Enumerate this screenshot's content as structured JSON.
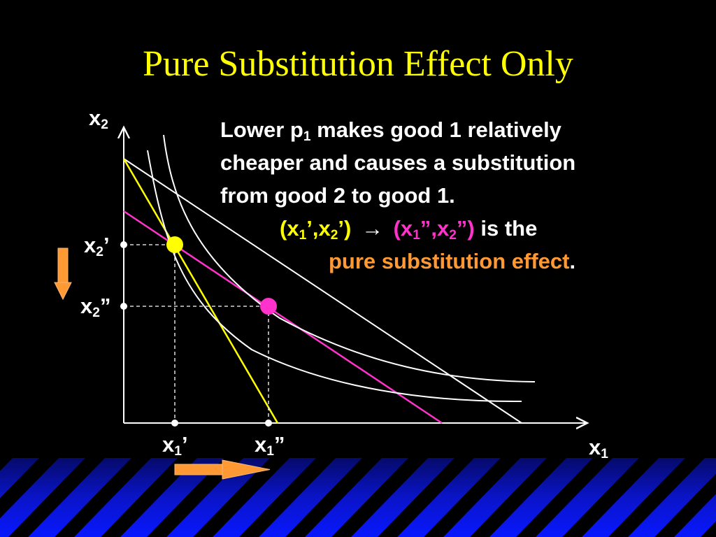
{
  "title": "Pure Substitution Effect Only",
  "text": {
    "line1_a": "Lower p",
    "line1_sub": "1",
    "line1_b": " makes good 1 relatively",
    "line2": "cheaper and causes a substitution",
    "line3": "from good 2 to good 1.",
    "pair1_open": "(x",
    "pair1_sub1": "1",
    "pair1_mid": "’,x",
    "pair1_sub2": "2",
    "pair1_close": "’)",
    "arrow": "→",
    "pair2_open": "(x",
    "pair2_sub1": "1",
    "pair2_mid": "”,x",
    "pair2_sub2": "2",
    "pair2_close": "”)",
    "is_the": " is the",
    "effect_name": "pure substitution effect",
    "period": "."
  },
  "axes": {
    "y_main": "x",
    "y_sub": "2",
    "x_main": "x",
    "x_sub": "1",
    "x2p_main": "x",
    "x2p_sub": "2",
    "x2p_mark": "’",
    "x2pp_main": "x",
    "x2pp_sub": "2",
    "x2pp_mark": "”",
    "x1p_main": "x",
    "x1p_sub": "1",
    "x1p_mark": "’",
    "x1pp_main": "x",
    "x1pp_sub": "1",
    "x1pp_mark": "”"
  },
  "colors": {
    "title": "#ffff00",
    "original_budget": "#ffff00",
    "pivoted_budget": "#ff33cc",
    "new_budget": "#ffffff",
    "original_point": "#ffff00",
    "new_point": "#ff33cc",
    "arrows": "#ff9933",
    "stripes": "#0a14c8"
  }
}
